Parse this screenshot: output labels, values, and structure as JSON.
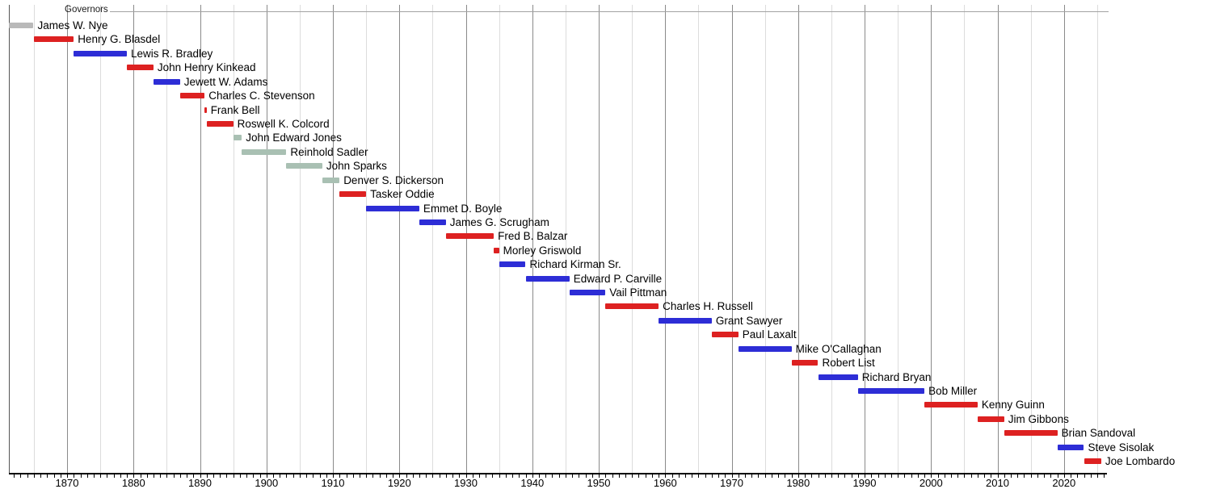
{
  "chart_data": {
    "type": "bar",
    "variant": "gantt-timeline",
    "title": "Governors",
    "legend": "none",
    "grid": "vertical, every 5 years (decades darker)",
    "x_axis": {
      "range": [
        1861.25,
        2026.5
      ],
      "major_tick_labels": [
        "1870",
        "1880",
        "1890",
        "1900",
        "1910",
        "1920",
        "1930",
        "1940",
        "1950",
        "1960",
        "1970",
        "1980",
        "1990",
        "2000",
        "2010",
        "2020"
      ],
      "major_tick_years": [
        1870,
        1880,
        1890,
        1900,
        1910,
        1920,
        1930,
        1940,
        1950,
        1960,
        1970,
        1980,
        1990,
        2000,
        2010,
        2020
      ],
      "minor_tick_step_years": 1,
      "gridline_step_years": 5
    },
    "palette": {
      "gray": "#b9b9b9",
      "red": "#dd2121",
      "blue": "#2d2dd6",
      "silver": "#a9c0b3"
    },
    "bars": [
      {
        "name": "James W. Nye",
        "start": 1861.25,
        "end": 1864.95,
        "color": "gray"
      },
      {
        "name": "Henry G. Blasdel",
        "start": 1864.95,
        "end": 1871.0,
        "color": "red"
      },
      {
        "name": "Lewis R. Bradley",
        "start": 1871.0,
        "end": 1879.0,
        "color": "blue"
      },
      {
        "name": "John Henry Kinkead",
        "start": 1879.0,
        "end": 1883.0,
        "color": "red"
      },
      {
        "name": "Jewett W. Adams",
        "start": 1883.0,
        "end": 1887.0,
        "color": "blue"
      },
      {
        "name": "Charles C. Stevenson",
        "start": 1887.0,
        "end": 1890.7,
        "color": "red"
      },
      {
        "name": "Frank Bell",
        "start": 1890.7,
        "end": 1891.0,
        "color": "red"
      },
      {
        "name": "Roswell K. Colcord",
        "start": 1891.0,
        "end": 1895.0,
        "color": "red"
      },
      {
        "name": "John Edward Jones",
        "start": 1895.0,
        "end": 1896.3,
        "color": "silver"
      },
      {
        "name": "Reinhold Sadler",
        "start": 1896.3,
        "end": 1903.0,
        "color": "silver"
      },
      {
        "name": "John Sparks",
        "start": 1903.0,
        "end": 1908.4,
        "color": "silver"
      },
      {
        "name": "Denver S. Dickerson",
        "start": 1908.4,
        "end": 1911.0,
        "color": "silver"
      },
      {
        "name": "Tasker Oddie",
        "start": 1911.0,
        "end": 1915.0,
        "color": "red"
      },
      {
        "name": "Emmet D. Boyle",
        "start": 1915.0,
        "end": 1923.0,
        "color": "blue"
      },
      {
        "name": "James G. Scrugham",
        "start": 1923.0,
        "end": 1927.0,
        "color": "blue"
      },
      {
        "name": "Fred B. Balzar",
        "start": 1927.0,
        "end": 1934.2,
        "color": "red"
      },
      {
        "name": "Morley Griswold",
        "start": 1934.2,
        "end": 1935.0,
        "color": "red"
      },
      {
        "name": "Richard Kirman Sr.",
        "start": 1935.0,
        "end": 1939.0,
        "color": "blue"
      },
      {
        "name": "Edward P. Carville",
        "start": 1939.0,
        "end": 1945.6,
        "color": "blue"
      },
      {
        "name": "Vail Pittman",
        "start": 1945.6,
        "end": 1951.0,
        "color": "blue"
      },
      {
        "name": "Charles H. Russell",
        "start": 1951.0,
        "end": 1959.0,
        "color": "red"
      },
      {
        "name": "Grant Sawyer",
        "start": 1959.0,
        "end": 1967.0,
        "color": "blue"
      },
      {
        "name": "Paul Laxalt",
        "start": 1967.0,
        "end": 1971.0,
        "color": "red"
      },
      {
        "name": "Mike O'Callaghan",
        "start": 1971.0,
        "end": 1979.0,
        "color": "blue"
      },
      {
        "name": "Robert List",
        "start": 1979.0,
        "end": 1983.0,
        "color": "red"
      },
      {
        "name": "Richard Bryan",
        "start": 1983.0,
        "end": 1989.0,
        "color": "blue"
      },
      {
        "name": "Bob Miller",
        "start": 1989.0,
        "end": 1999.0,
        "color": "blue"
      },
      {
        "name": "Kenny Guinn",
        "start": 1999.0,
        "end": 2007.0,
        "color": "red"
      },
      {
        "name": "Jim Gibbons",
        "start": 2007.0,
        "end": 2011.0,
        "color": "red"
      },
      {
        "name": "Brian Sandoval",
        "start": 2011.0,
        "end": 2019.0,
        "color": "red"
      },
      {
        "name": "Steve Sisolak",
        "start": 2019.0,
        "end": 2023.0,
        "color": "blue"
      },
      {
        "name": "Joe Lombardo",
        "start": 2023.0,
        "end": 2025.6,
        "color": "red"
      }
    ]
  }
}
